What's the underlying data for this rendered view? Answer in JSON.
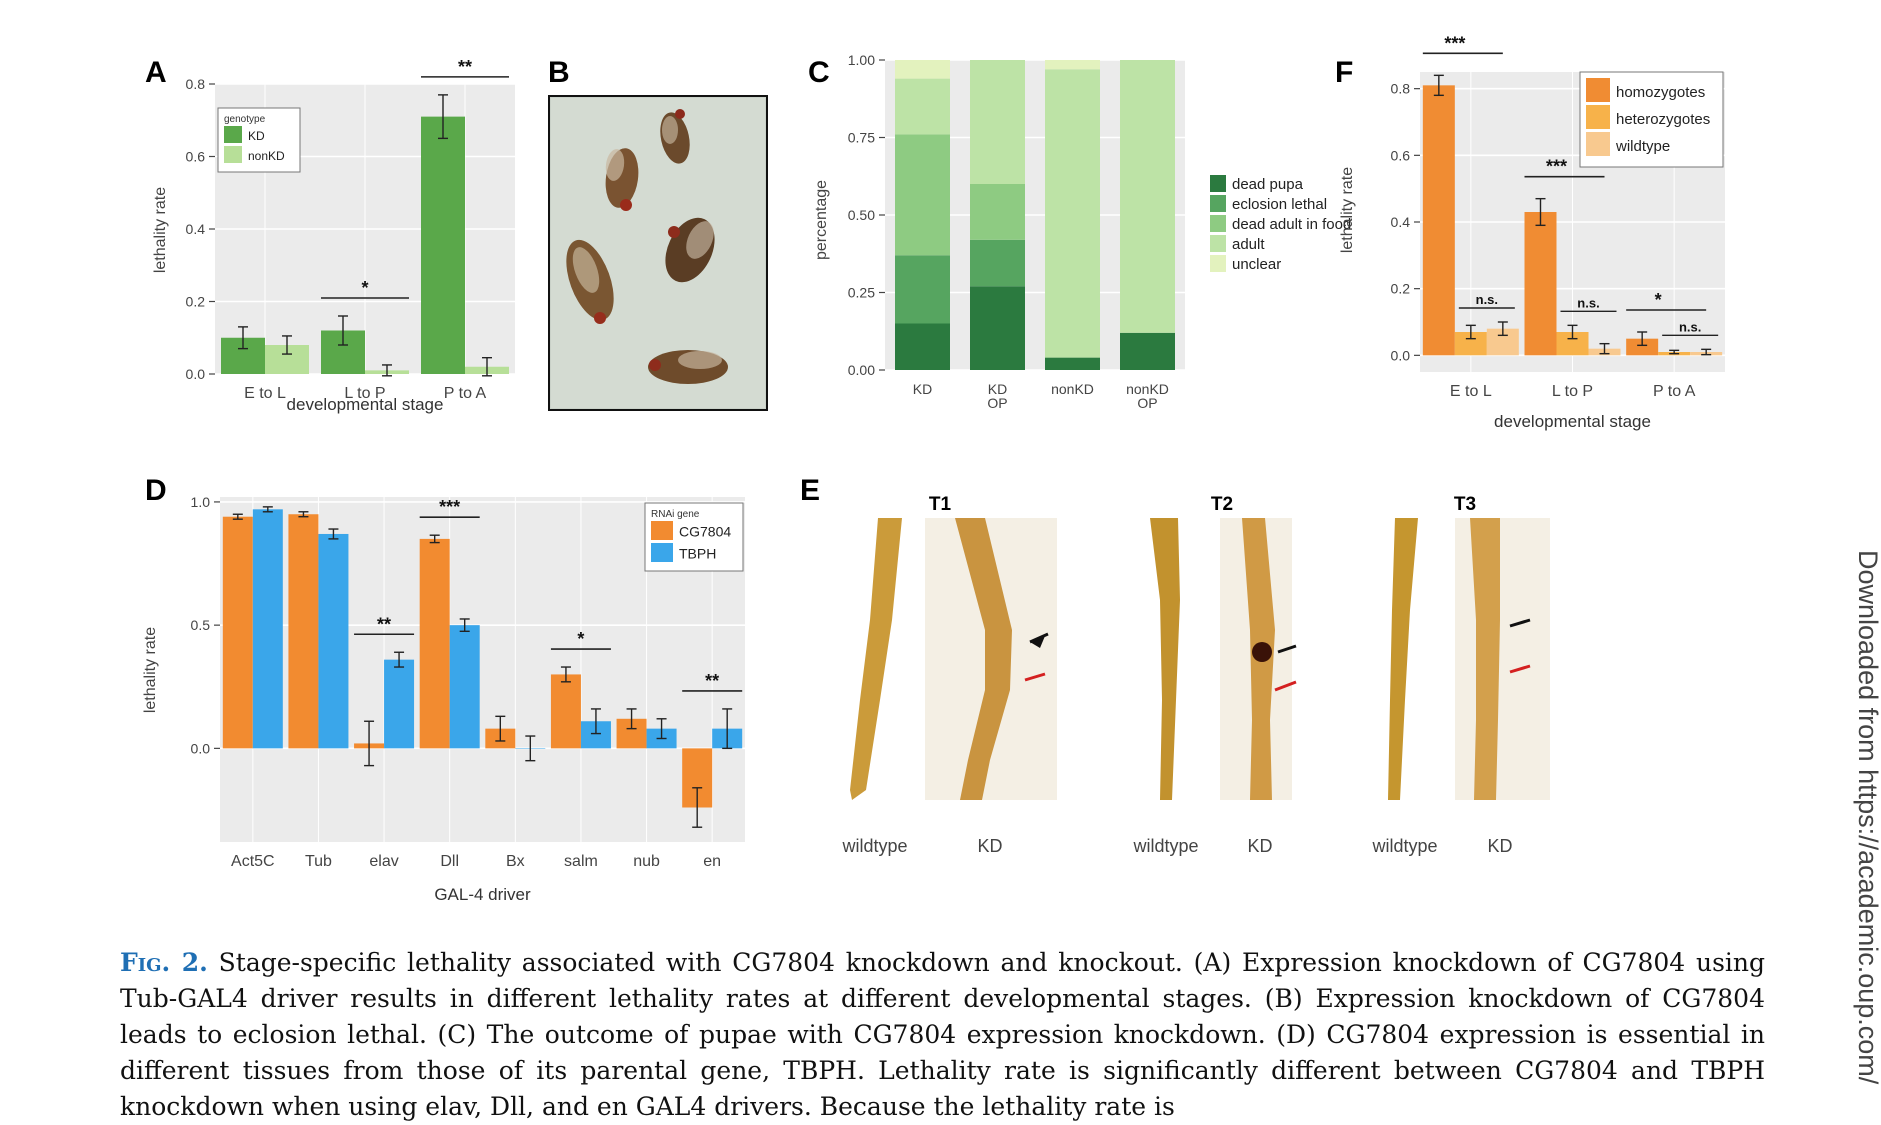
{
  "panel_labels": {
    "A": "A",
    "B": "B",
    "C": "C",
    "D": "D",
    "E": "E",
    "F": "F"
  },
  "chart_data": [
    {
      "panel": "A",
      "type": "bar",
      "title": "",
      "xlabel": "developmental stage",
      "ylabel": "lethality rate",
      "ylim": [
        0,
        0.8
      ],
      "yticks": [
        "0.0",
        "0.2",
        "0.4",
        "0.6",
        "0.8"
      ],
      "categories": [
        "E to L",
        "L to P",
        "P to A"
      ],
      "legend_title": "genotype",
      "series": [
        {
          "name": "KD",
          "color": "#5aa84a",
          "values": [
            0.1,
            0.12,
            0.71
          ],
          "err": [
            0.03,
            0.04,
            0.06
          ]
        },
        {
          "name": "nonKD",
          "color": "#b7df98",
          "values": [
            0.08,
            0.01,
            0.02
          ],
          "err": [
            0.025,
            0.015,
            0.025
          ]
        }
      ],
      "significance": [
        "",
        "*",
        "**"
      ]
    },
    {
      "panel": "C",
      "type": "bar",
      "stacked": true,
      "xlabel": "",
      "ylabel": "percentage",
      "ylim": [
        0,
        1.0
      ],
      "yticks": [
        "0.00",
        "0.25",
        "0.50",
        "0.75",
        "1.00"
      ],
      "categories": [
        "KD",
        "KD OP",
        "nonKD",
        "nonKD OP"
      ],
      "series": [
        {
          "name": "dead pupa",
          "color": "#2b7a3f",
          "values": [
            0.15,
            0.27,
            0.04,
            0.12
          ]
        },
        {
          "name": "eclosion lethal",
          "color": "#56a560",
          "values": [
            0.22,
            0.15,
            0.0,
            0.0
          ]
        },
        {
          "name": "dead adult in food",
          "color": "#8ecb82",
          "values": [
            0.39,
            0.18,
            0.0,
            0.0
          ]
        },
        {
          "name": "adult",
          "color": "#bde3a6",
          "values": [
            0.18,
            0.4,
            0.93,
            0.88
          ]
        },
        {
          "name": "unclear",
          "color": "#e3f2be",
          "values": [
            0.06,
            0.0,
            0.03,
            0.0
          ]
        }
      ]
    },
    {
      "panel": "D",
      "type": "bar",
      "xlabel": "GAL-4 driver",
      "ylabel": "lethality rate",
      "ylim": [
        -0.38,
        1.02
      ],
      "yticks": [
        "0.0",
        "0.5",
        "1.0"
      ],
      "categories": [
        "Act5C",
        "Tub",
        "elav",
        "Dll",
        "Bx",
        "salm",
        "nub",
        "en"
      ],
      "legend_title": "RNAi gene",
      "series": [
        {
          "name": "CG7804",
          "color": "#f28b30",
          "values": [
            0.94,
            0.95,
            0.02,
            0.85,
            0.08,
            0.3,
            0.12,
            -0.24
          ],
          "err": [
            0.01,
            0.01,
            0.09,
            0.015,
            0.05,
            0.03,
            0.04,
            0.08
          ]
        },
        {
          "name": "TBPH",
          "color": "#3aa6ea",
          "values": [
            0.97,
            0.87,
            0.36,
            0.5,
            0.0,
            0.11,
            0.08,
            0.08
          ],
          "err": [
            0.01,
            0.02,
            0.03,
            0.025,
            0.05,
            0.05,
            0.04,
            0.08
          ]
        }
      ],
      "significance": [
        "",
        "",
        "**",
        "***",
        "",
        "*",
        "",
        "**"
      ]
    },
    {
      "panel": "F",
      "type": "bar",
      "xlabel": "developmental stage",
      "ylabel": "lethality rate",
      "ylim": [
        -0.05,
        0.85
      ],
      "yticks": [
        "0.0",
        "0.2",
        "0.4",
        "0.6",
        "0.8"
      ],
      "categories": [
        "E to L",
        "L to P",
        "P to A"
      ],
      "series": [
        {
          "name": "homozygotes",
          "color": "#f08c33",
          "values": [
            0.81,
            0.43,
            0.05
          ],
          "err": [
            0.03,
            0.04,
            0.02
          ]
        },
        {
          "name": "heterozygotes",
          "color": "#f7b24a",
          "values": [
            0.07,
            0.07,
            0.01
          ],
          "err": [
            0.02,
            0.02,
            0.005
          ]
        },
        {
          "name": "wildtype",
          "color": "#f8c98f",
          "values": [
            0.08,
            0.02,
            0.01
          ],
          "err": [
            0.02,
            0.015,
            0.008
          ]
        }
      ],
      "significance_main": [
        "***",
        "***",
        "*"
      ],
      "significance_sub": [
        "n.s.",
        "n.s.",
        "n.s."
      ]
    }
  ],
  "panel_E": {
    "columns": [
      "T1",
      "T2",
      "T3"
    ],
    "image_labels": [
      "wildtype",
      "KD"
    ]
  },
  "caption": {
    "figlabel": "Fig. 2.",
    "text": " Stage-specific lethality associated with CG7804 knockdown and knockout. (A) Expression knockdown of CG7804 using Tub-GAL4 driver results in different lethality rates at different developmental stages. (B) Expression knockdown of CG7804 leads to eclosion lethal. (C) The outcome of pupae with CG7804 expression knockdown. (D) CG7804 expression is essential in different tissues from those of its parental gene, TBPH. Lethality rate is significantly different between CG7804 and TBPH knockdown when using elav, Dll, and en GAL4 drivers. Because the lethality rate is"
  },
  "side_note": "Downloaded from https://academic.oup.com/"
}
